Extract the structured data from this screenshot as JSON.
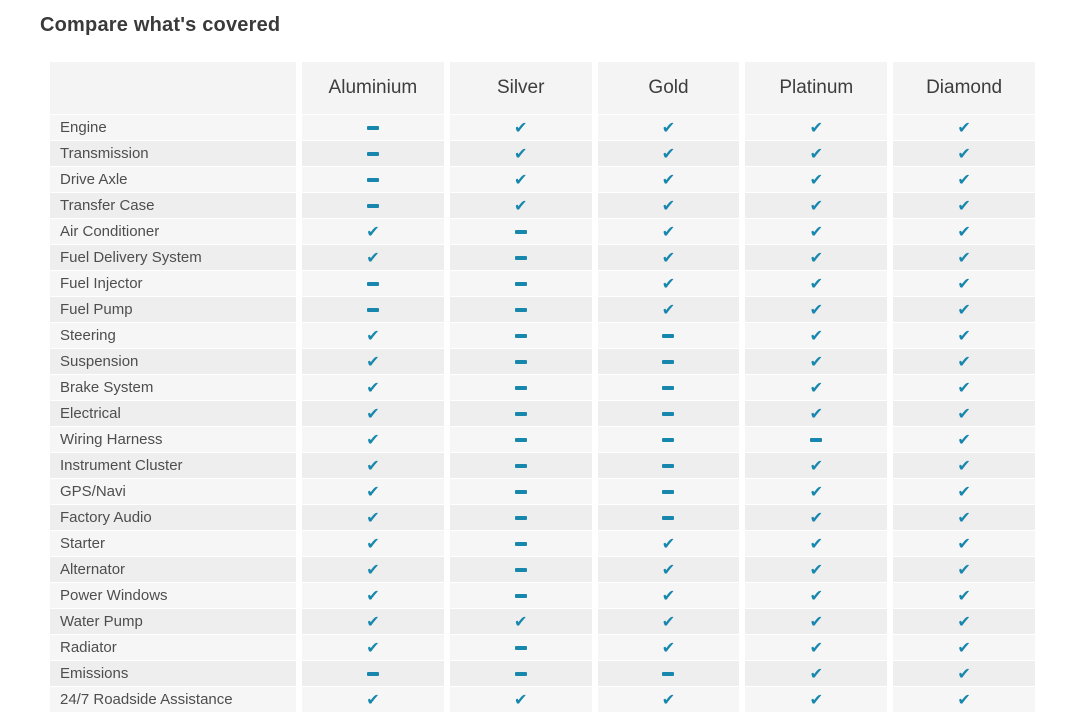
{
  "title": "Compare what's covered",
  "columns": [
    "Aluminium",
    "Silver",
    "Gold",
    "Platinum",
    "Diamond"
  ],
  "rows": [
    {
      "label": "Engine",
      "values": [
        "dash",
        "check",
        "check",
        "check",
        "check"
      ]
    },
    {
      "label": "Transmission",
      "values": [
        "dash",
        "check",
        "check",
        "check",
        "check"
      ]
    },
    {
      "label": "Drive Axle",
      "values": [
        "dash",
        "check",
        "check",
        "check",
        "check"
      ]
    },
    {
      "label": "Transfer Case",
      "values": [
        "dash",
        "check",
        "check",
        "check",
        "check"
      ]
    },
    {
      "label": "Air Conditioner",
      "values": [
        "check",
        "dash",
        "check",
        "check",
        "check"
      ]
    },
    {
      "label": "Fuel Delivery System",
      "values": [
        "check",
        "dash",
        "check",
        "check",
        "check"
      ]
    },
    {
      "label": "Fuel Injector",
      "values": [
        "dash",
        "dash",
        "check",
        "check",
        "check"
      ]
    },
    {
      "label": "Fuel Pump",
      "values": [
        "dash",
        "dash",
        "check",
        "check",
        "check"
      ]
    },
    {
      "label": "Steering",
      "values": [
        "check",
        "dash",
        "dash",
        "check",
        "check"
      ]
    },
    {
      "label": "Suspension",
      "values": [
        "check",
        "dash",
        "dash",
        "check",
        "check"
      ]
    },
    {
      "label": "Brake System",
      "values": [
        "check",
        "dash",
        "dash",
        "check",
        "check"
      ]
    },
    {
      "label": "Electrical",
      "values": [
        "check",
        "dash",
        "dash",
        "check",
        "check"
      ]
    },
    {
      "label": "Wiring Harness",
      "values": [
        "check",
        "dash",
        "dash",
        "dash",
        "check"
      ]
    },
    {
      "label": "Instrument Cluster",
      "values": [
        "check",
        "dash",
        "dash",
        "check",
        "check"
      ]
    },
    {
      "label": "GPS/Navi",
      "values": [
        "check",
        "dash",
        "dash",
        "check",
        "check"
      ]
    },
    {
      "label": "Factory Audio",
      "values": [
        "check",
        "dash",
        "dash",
        "check",
        "check"
      ]
    },
    {
      "label": "Starter",
      "values": [
        "check",
        "dash",
        "check",
        "check",
        "check"
      ]
    },
    {
      "label": "Alternator",
      "values": [
        "check",
        "dash",
        "check",
        "check",
        "check"
      ]
    },
    {
      "label": "Power Windows",
      "values": [
        "check",
        "dash",
        "check",
        "check",
        "check"
      ]
    },
    {
      "label": "Water Pump",
      "values": [
        "check",
        "check",
        "check",
        "check",
        "check"
      ]
    },
    {
      "label": "Radiator",
      "values": [
        "check",
        "dash",
        "check",
        "check",
        "check"
      ]
    },
    {
      "label": "Emissions",
      "values": [
        "dash",
        "dash",
        "dash",
        "check",
        "check"
      ]
    },
    {
      "label": "24/7 Roadside Assistance",
      "values": [
        "check",
        "check",
        "check",
        "check",
        "check"
      ]
    }
  ],
  "icons": {
    "check_glyph": "✔",
    "check_name": "check-icon",
    "dash_name": "dash-icon"
  },
  "colors": {
    "accent": "#1787ad",
    "stripe_light": "#f6f6f6",
    "stripe_dark": "#eeeeee",
    "header_bg": "#f4f4f4"
  }
}
